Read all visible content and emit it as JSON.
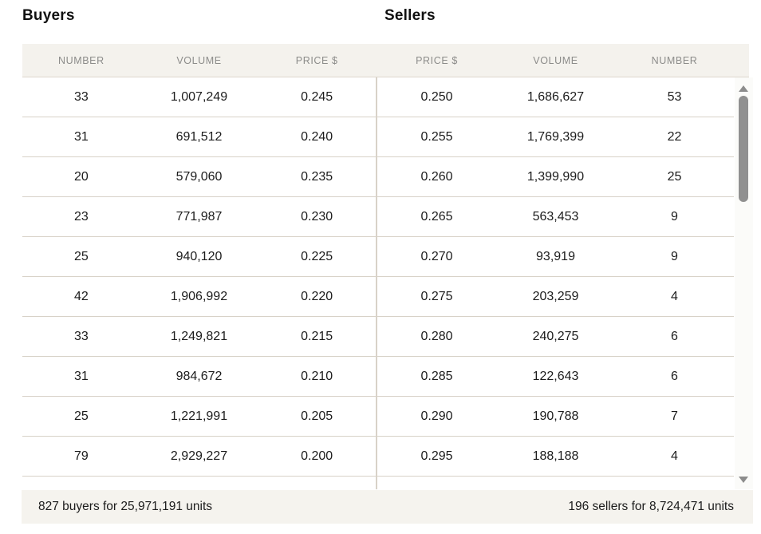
{
  "buyers": {
    "title": "Buyers",
    "columns": [
      "NUMBER",
      "VOLUME",
      "PRICE $"
    ],
    "rows": [
      {
        "number": "33",
        "volume": "1,007,249",
        "price": "0.245"
      },
      {
        "number": "31",
        "volume": "691,512",
        "price": "0.240"
      },
      {
        "number": "20",
        "volume": "579,060",
        "price": "0.235"
      },
      {
        "number": "23",
        "volume": "771,987",
        "price": "0.230"
      },
      {
        "number": "25",
        "volume": "940,120",
        "price": "0.225"
      },
      {
        "number": "42",
        "volume": "1,906,992",
        "price": "0.220"
      },
      {
        "number": "33",
        "volume": "1,249,821",
        "price": "0.215"
      },
      {
        "number": "31",
        "volume": "984,672",
        "price": "0.210"
      },
      {
        "number": "25",
        "volume": "1,221,991",
        "price": "0.205"
      },
      {
        "number": "79",
        "volume": "2,929,227",
        "price": "0.200"
      }
    ],
    "summary": "827 buyers for 25,971,191 units"
  },
  "sellers": {
    "title": "Sellers",
    "columns": [
      "PRICE $",
      "VOLUME",
      "NUMBER"
    ],
    "rows": [
      {
        "price": "0.250",
        "volume": "1,686,627",
        "number": "53"
      },
      {
        "price": "0.255",
        "volume": "1,769,399",
        "number": "22"
      },
      {
        "price": "0.260",
        "volume": "1,399,990",
        "number": "25"
      },
      {
        "price": "0.265",
        "volume": "563,453",
        "number": "9"
      },
      {
        "price": "0.270",
        "volume": "93,919",
        "number": "9"
      },
      {
        "price": "0.275",
        "volume": "203,259",
        "number": "4"
      },
      {
        "price": "0.280",
        "volume": "240,275",
        "number": "6"
      },
      {
        "price": "0.285",
        "volume": "122,643",
        "number": "6"
      },
      {
        "price": "0.290",
        "volume": "190,788",
        "number": "7"
      },
      {
        "price": "0.295",
        "volume": "188,188",
        "number": "4"
      }
    ],
    "summary": "196 sellers for 8,724,471 units"
  },
  "colors": {
    "header_band_bg": "#f4f2ed",
    "footer_band_bg": "#f5f3ee",
    "divider": "#d8d2c8",
    "header_text": "#8c8c8a",
    "body_text": "#1c1c1c",
    "scrollbar_thumb": "#909090",
    "scrollbar_track": "#fbfbf9"
  }
}
